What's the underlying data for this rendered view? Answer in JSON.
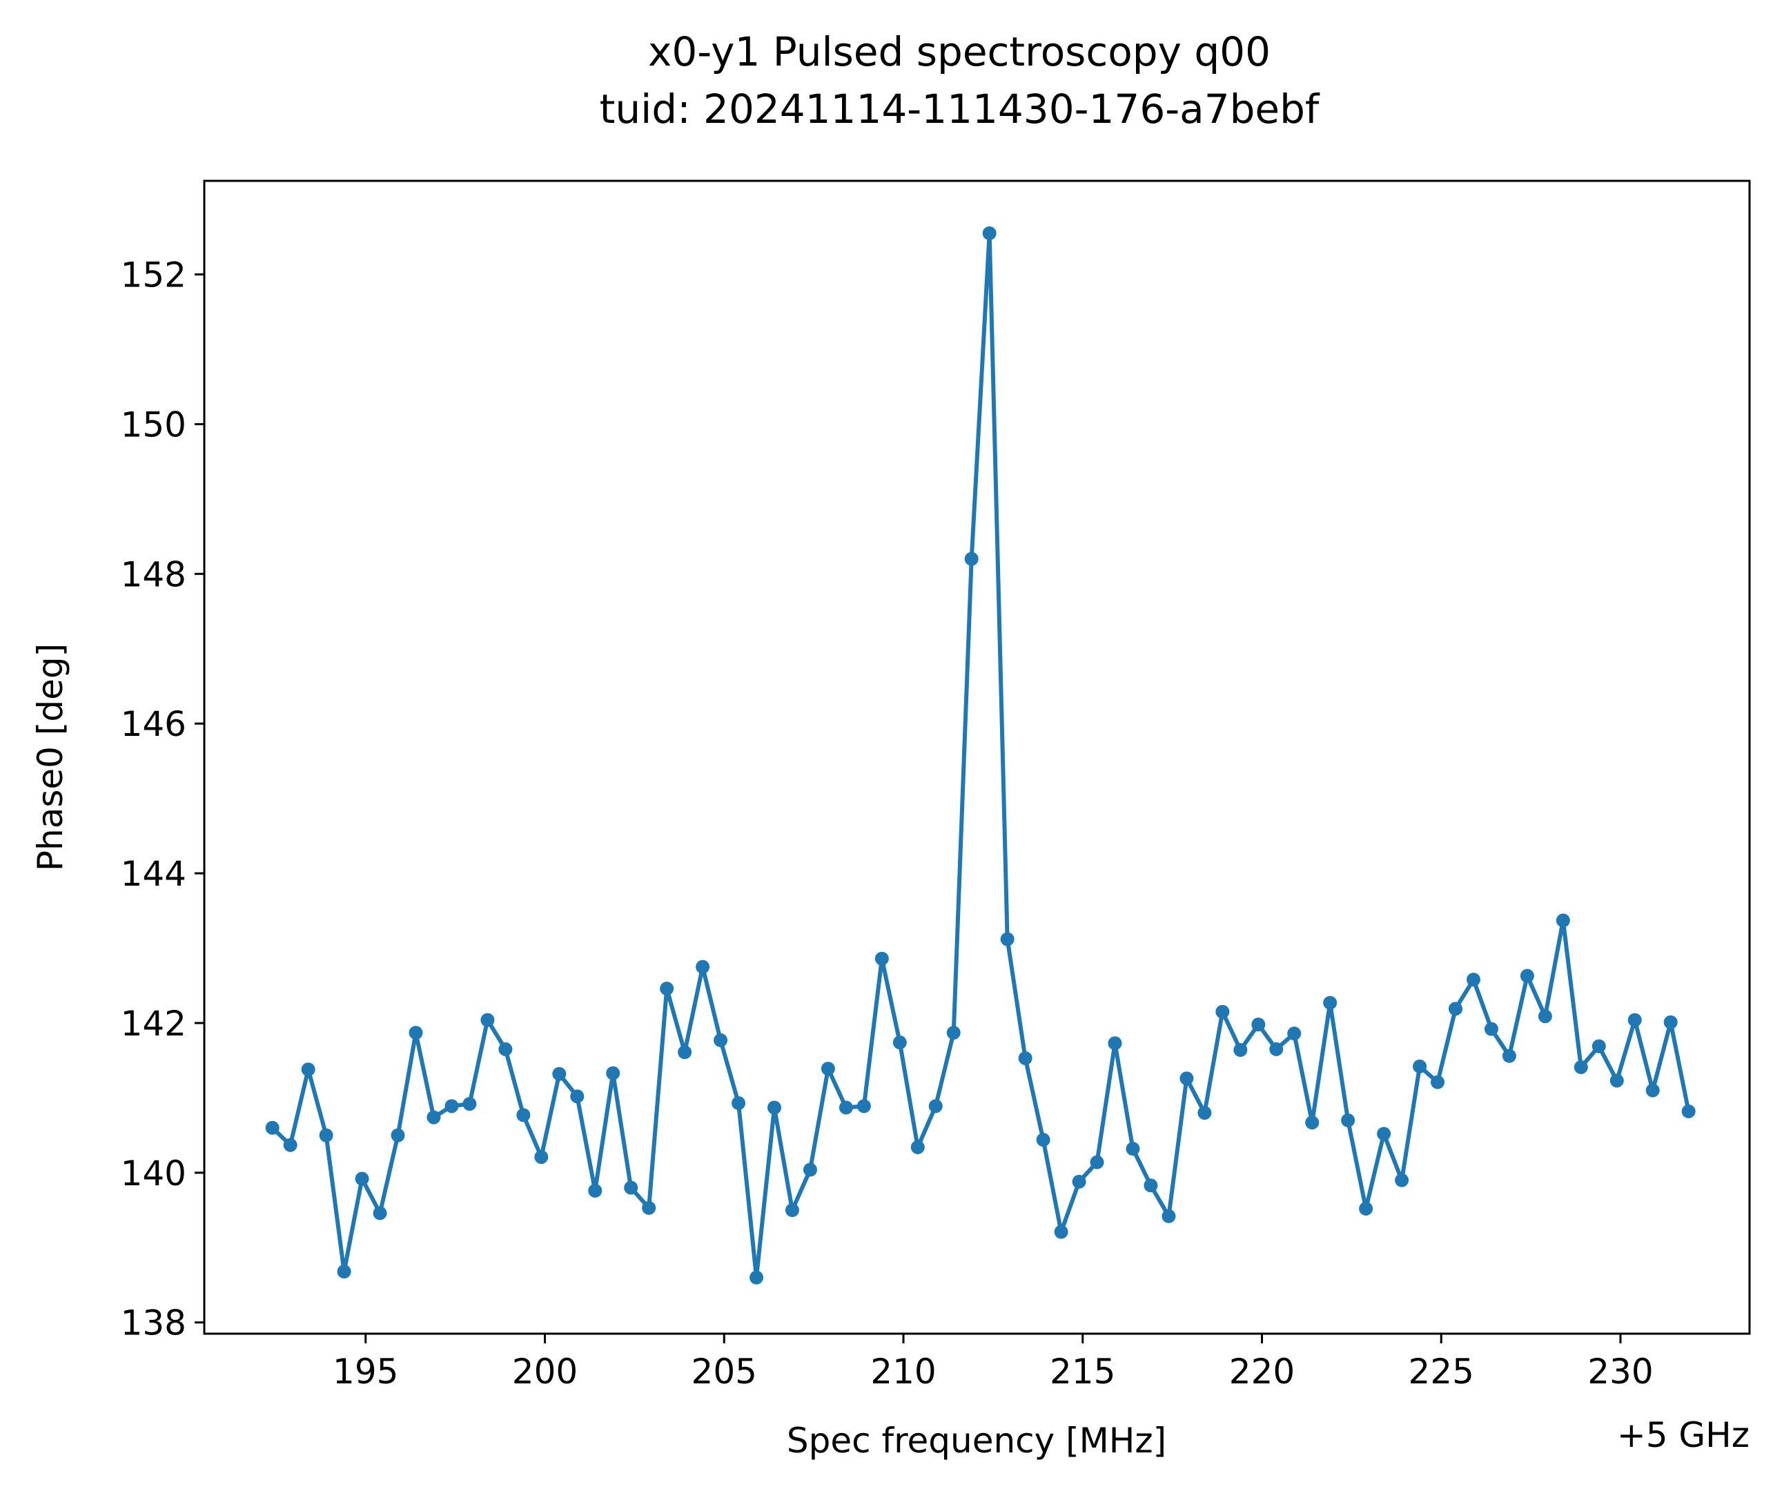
{
  "figure": {
    "title_line1": "x0-y1 Pulsed spectroscopy q00",
    "title_line2": "tuid: 20241114-111430-176-a7bebf",
    "axis_offset_label": "+5 GHz"
  },
  "chart_data": {
    "type": "line",
    "title": "x0-y1 Pulsed spectroscopy q00\ntuid: 20241114-111430-176-a7bebf",
    "xlabel": "Spec frequency [MHz]",
    "ylabel": "Phase0 [deg]",
    "x_offset": "+5 GHz",
    "xlim": [
      190.5,
      233.6
    ],
    "ylim": [
      137.85,
      153.25
    ],
    "xticks": [
      195,
      200,
      205,
      210,
      215,
      220,
      225,
      230
    ],
    "yticks": [
      138,
      140,
      142,
      144,
      146,
      148,
      150,
      152
    ],
    "grid": false,
    "markers": true,
    "color": "#1f77b4",
    "series": [
      {
        "x": [
          192.4,
          192.9,
          193.4,
          193.9,
          194.4,
          194.9,
          195.4,
          195.9,
          196.4,
          196.9,
          197.4,
          197.9,
          198.4,
          198.9,
          199.4,
          199.9,
          200.4,
          200.9,
          201.4,
          201.9,
          202.4,
          202.9,
          203.4,
          203.9,
          204.4,
          204.9,
          205.4,
          205.9,
          206.4,
          206.9,
          207.4,
          207.9,
          208.4,
          208.9,
          209.4,
          209.9,
          210.4,
          210.9,
          211.4,
          211.9,
          212.4,
          212.9,
          213.4,
          213.9,
          214.4,
          214.9,
          215.4,
          215.9,
          216.4,
          216.9,
          217.4,
          217.9,
          218.4,
          218.9,
          219.4,
          219.9,
          220.4,
          220.9,
          221.4,
          221.9,
          222.4,
          222.9,
          223.4,
          223.9,
          224.4,
          224.9,
          225.4,
          225.9,
          226.4,
          226.9,
          227.4,
          227.9,
          228.4,
          228.9,
          229.4,
          229.9,
          230.4,
          230.9,
          231.4,
          231.9
        ],
        "values": [
          140.6,
          140.37,
          141.38,
          140.5,
          138.68,
          139.92,
          139.46,
          140.5,
          141.87,
          140.74,
          140.89,
          140.92,
          142.04,
          141.65,
          140.77,
          140.21,
          141.32,
          141.02,
          139.76,
          141.33,
          139.8,
          139.53,
          142.46,
          141.61,
          142.75,
          141.77,
          140.93,
          138.6,
          140.87,
          139.5,
          140.04,
          141.39,
          140.87,
          140.89,
          142.86,
          141.74,
          140.34,
          140.89,
          141.87,
          148.2,
          152.55,
          143.12,
          141.53,
          140.44,
          139.21,
          139.88,
          140.14,
          141.73,
          140.32,
          139.83,
          139.42,
          141.26,
          140.8,
          142.15,
          141.64,
          141.98,
          141.65,
          141.86,
          140.67,
          142.27,
          140.7,
          139.52,
          140.52,
          139.9,
          141.42,
          141.21,
          142.19,
          142.58,
          141.92,
          141.56,
          142.63,
          142.09,
          143.37,
          141.41,
          141.69,
          141.23,
          142.04,
          141.1,
          142.01,
          140.82
        ]
      }
    ]
  }
}
